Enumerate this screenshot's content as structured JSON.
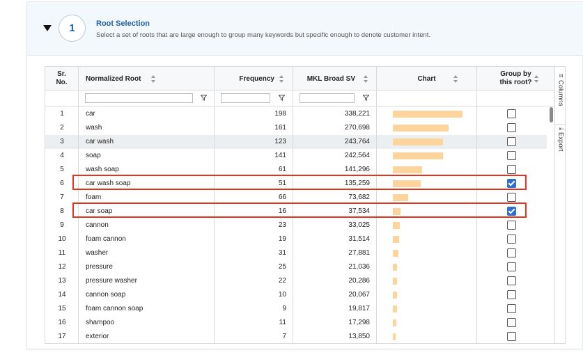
{
  "step": {
    "number": "1",
    "title": "Root Selection",
    "subtitle": "Select a set of roots that are large enough to group many keywords but specific enough to denote customer intent."
  },
  "columns": {
    "sr_line1": "Sr.",
    "sr_line2": "No.",
    "root": "Normalized Root",
    "frequency": "Frequency",
    "mkl": "MKL Broad SV",
    "chart": "Chart",
    "group_line1": "Group by",
    "group_line2": "this root?"
  },
  "side_panel": {
    "columns": "Columns",
    "export": "Export"
  },
  "rows": [
    {
      "sr": "1",
      "root": "car",
      "frequency": "198",
      "mkl": "338,221",
      "mkl_value": 338221,
      "checked": false
    },
    {
      "sr": "2",
      "root": "wash",
      "frequency": "161",
      "mkl": "270,698",
      "mkl_value": 270698,
      "checked": false
    },
    {
      "sr": "3",
      "root": "car wash",
      "frequency": "123",
      "mkl": "243,764",
      "mkl_value": 243764,
      "checked": false
    },
    {
      "sr": "4",
      "root": "soap",
      "frequency": "141",
      "mkl": "242,564",
      "mkl_value": 242564,
      "checked": false
    },
    {
      "sr": "5",
      "root": "wash soap",
      "frequency": "61",
      "mkl": "141,296",
      "mkl_value": 141296,
      "checked": false
    },
    {
      "sr": "6",
      "root": "car wash soap",
      "frequency": "51",
      "mkl": "135,259",
      "mkl_value": 135259,
      "checked": true
    },
    {
      "sr": "7",
      "root": "foam",
      "frequency": "66",
      "mkl": "73,682",
      "mkl_value": 73682,
      "checked": false
    },
    {
      "sr": "8",
      "root": "car soap",
      "frequency": "16",
      "mkl": "37,534",
      "mkl_value": 37534,
      "checked": true
    },
    {
      "sr": "9",
      "root": "cannon",
      "frequency": "23",
      "mkl": "33,025",
      "mkl_value": 33025,
      "checked": false
    },
    {
      "sr": "10",
      "root": "foam cannon",
      "frequency": "19",
      "mkl": "31,514",
      "mkl_value": 31514,
      "checked": false
    },
    {
      "sr": "11",
      "root": "washer",
      "frequency": "31",
      "mkl": "27,881",
      "mkl_value": 27881,
      "checked": false
    },
    {
      "sr": "12",
      "root": "pressure",
      "frequency": "25",
      "mkl": "21,036",
      "mkl_value": 21036,
      "checked": false
    },
    {
      "sr": "13",
      "root": "pressure washer",
      "frequency": "22",
      "mkl": "20,286",
      "mkl_value": 20286,
      "checked": false
    },
    {
      "sr": "14",
      "root": "cannon soap",
      "frequency": "10",
      "mkl": "20,067",
      "mkl_value": 20067,
      "checked": false
    },
    {
      "sr": "15",
      "root": "foam cannon soap",
      "frequency": "9",
      "mkl": "19,817",
      "mkl_value": 19817,
      "checked": false
    },
    {
      "sr": "16",
      "root": "shampoo",
      "frequency": "11",
      "mkl": "17,298",
      "mkl_value": 17298,
      "checked": false
    },
    {
      "sr": "17",
      "root": "exterior",
      "frequency": "7",
      "mkl": "13,850",
      "mkl_value": 13850,
      "checked": false
    }
  ],
  "highlighted_rows": [
    "6",
    "8"
  ],
  "colors": {
    "bar": "#fcd49c",
    "highlight": "#e0341e",
    "accent": "#2f6fd3",
    "title": "#1f5fa6"
  }
}
